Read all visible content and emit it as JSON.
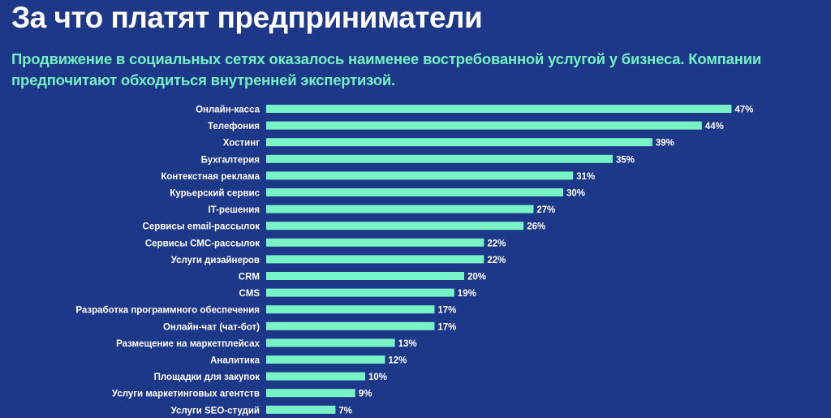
{
  "colors": {
    "background": "#1e3889",
    "bar": "#78f3c5",
    "subtitle": "#72f0c2"
  },
  "chart_data": {
    "type": "bar",
    "orientation": "horizontal",
    "title": "За что платят предприниматели",
    "subtitle": "Продвижение в социальных сетях оказалось наименее востребованной услугой у бизнеса. Компании предпочитают обходиться внутренней экспертизой.",
    "unit": "%",
    "categories": [
      "Онлайн-касса",
      "Телефония",
      "Хостинг",
      "Бухгалтерия",
      "Контекстная реклама",
      "Курьерский сервис",
      "IT-решения",
      "Сервисы email-рассылок",
      "Сервисы СМС-рассылок",
      "Услуги дизайнеров",
      "CRM",
      "CMS",
      "Разработка программного обеспечения",
      "Онлайн-чат (чат-бот)",
      "Размещение на маркетплейсах",
      "Аналитика",
      "Площадки для закупок",
      "Услуги маркетинговых агентств",
      "Услуги SEO-студий"
    ],
    "values": [
      47,
      44,
      39,
      35,
      31,
      30,
      27,
      26,
      22,
      22,
      20,
      19,
      17,
      17,
      13,
      12,
      10,
      9,
      7
    ],
    "grid": false
  }
}
